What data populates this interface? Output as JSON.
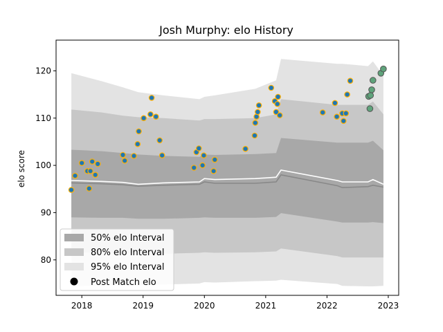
{
  "chart_data": {
    "type": "scatter",
    "title": "Josh Murphy: elo History",
    "xlabel": "",
    "ylabel": "elo score",
    "xlim": [
      2017.58,
      2023.17
    ],
    "ylim": [
      72.5,
      126.5
    ],
    "x_ticks": [
      2018,
      2019,
      2020,
      2021,
      2022,
      2023
    ],
    "y_ticks": [
      80,
      90,
      100,
      110,
      120
    ],
    "grid": false,
    "legend": {
      "position": "lower-left",
      "entries": [
        "50% elo Interval",
        "80% elo Interval",
        "95% elo Interval",
        "Post Match elo"
      ]
    },
    "colors": {
      "band_50": "#a8a8a8",
      "band_80": "#c7c7c7",
      "band_95": "#e3e3e3",
      "median_line": "#888888",
      "mean_line": "#ffffff",
      "point_fill": "#1f77b4",
      "point_edge": "#ffb000",
      "recent_fill": "#5fa37b",
      "recent_edge": "#555555"
    },
    "bands": {
      "x": [
        2017.83,
        2018.33,
        2018.67,
        2018.92,
        2019.33,
        2019.92,
        2020.0,
        2020.17,
        2020.83,
        2021.17,
        2021.25,
        2022.17,
        2022.25,
        2022.67,
        2022.75,
        2022.92
      ],
      "p95_upper": [
        119.5,
        117.8,
        116.5,
        115.5,
        114.8,
        114.0,
        114.5,
        114.8,
        116.2,
        118.0,
        122.5,
        121.5,
        121.5,
        121.0,
        122.0,
        119.0
      ],
      "p80_upper": [
        111.8,
        111.2,
        110.5,
        110.2,
        110.0,
        109.5,
        109.8,
        109.8,
        110.0,
        110.8,
        114.0,
        112.8,
        112.8,
        112.8,
        113.5,
        110.8
      ],
      "p50_upper": [
        103.3,
        103.0,
        102.6,
        102.3,
        102.0,
        101.8,
        102.3,
        102.2,
        102.4,
        102.6,
        105.8,
        104.8,
        104.8,
        104.8,
        105.2,
        103.2
      ],
      "mean": [
        96.8,
        96.6,
        96.4,
        96.0,
        96.3,
        96.5,
        97.2,
        97.0,
        97.2,
        97.5,
        99.0,
        96.8,
        96.5,
        96.5,
        97.0,
        96.0
      ],
      "median": [
        96.3,
        96.1,
        95.9,
        95.6,
        95.8,
        96.0,
        96.5,
        96.2,
        96.2,
        96.5,
        98.0,
        95.7,
        95.3,
        95.5,
        95.8,
        95.4
      ],
      "p50_lower": [
        89.0,
        88.9,
        88.9,
        88.7,
        88.7,
        88.9,
        89.0,
        88.9,
        88.9,
        89.1,
        89.9,
        88.1,
        87.9,
        87.9,
        88.0,
        87.8
      ],
      "p80_lower": [
        81.5,
        81.6,
        81.5,
        81.3,
        81.3,
        81.5,
        81.6,
        81.5,
        81.6,
        81.8,
        82.4,
        80.8,
        80.5,
        80.5,
        80.5,
        80.5
      ],
      "p95_lower": [
        74.4,
        74.6,
        74.6,
        74.6,
        74.8,
        75.0,
        75.3,
        75.2,
        75.5,
        75.6,
        75.8,
        74.9,
        74.5,
        74.4,
        74.4,
        74.5
      ]
    },
    "points": {
      "x": [
        2017.83,
        2017.89,
        2018.0,
        2018.09,
        2018.12,
        2018.14,
        2018.17,
        2018.22,
        2018.26,
        2018.67,
        2018.7,
        2018.85,
        2018.91,
        2018.93,
        2019.01,
        2019.12,
        2019.14,
        2019.21,
        2019.27,
        2019.31,
        2019.83,
        2019.87,
        2019.91,
        2019.97,
        2019.99,
        2020.15,
        2020.17,
        2020.67,
        2020.82,
        2020.83,
        2020.85,
        2020.87,
        2020.89,
        2021.09,
        2021.15,
        2021.17,
        2021.19,
        2021.2,
        2021.23,
        2021.93,
        2022.13,
        2022.16,
        2022.25,
        2022.27,
        2022.31,
        2022.33,
        2022.38
      ],
      "y": [
        94.8,
        97.8,
        100.5,
        98.8,
        95.1,
        98.8,
        100.8,
        98.0,
        100.3,
        102.2,
        101.0,
        102.0,
        104.5,
        107.2,
        110.0,
        110.8,
        114.3,
        110.3,
        105.3,
        102.1,
        99.5,
        102.8,
        103.6,
        100.0,
        102.1,
        98.8,
        101.2,
        103.5,
        106.3,
        109.0,
        110.3,
        111.3,
        112.7,
        116.4,
        113.6,
        111.3,
        113.0,
        114.5,
        110.6,
        111.2,
        113.2,
        110.3,
        111.0,
        109.4,
        111.0,
        115.0,
        117.9
      ]
    },
    "recent_points": {
      "x": [
        2022.68,
        2022.7,
        2022.71,
        2022.73,
        2022.75,
        2022.88,
        2022.92
      ],
      "y": [
        114.6,
        112.0,
        114.8,
        116.0,
        118.0,
        119.5,
        120.4
      ]
    }
  }
}
